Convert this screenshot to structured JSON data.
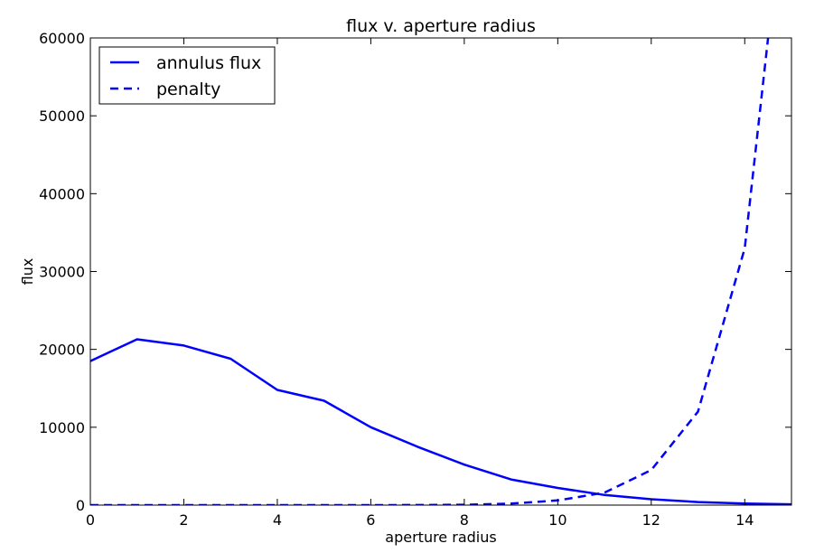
{
  "chart_data": {
    "type": "line",
    "title": "flux v. aperture radius",
    "xlabel": "aperture radius",
    "ylabel": "flux",
    "xlim": [
      0,
      15
    ],
    "ylim": [
      0,
      60000
    ],
    "xticks": [
      0,
      2,
      4,
      6,
      8,
      10,
      12,
      14
    ],
    "yticks": [
      0,
      10000,
      20000,
      30000,
      40000,
      50000,
      60000
    ],
    "grid": false,
    "legend": "top-left",
    "color": "#0000ff",
    "series": [
      {
        "name": "annulus flux",
        "style": "solid",
        "x": [
          0,
          1,
          2,
          3,
          4,
          5,
          6,
          7,
          8,
          9,
          10,
          11,
          12,
          13,
          14,
          15
        ],
        "y": [
          18500,
          21300,
          20500,
          18800,
          14800,
          13400,
          10000,
          7500,
          5200,
          3300,
          2200,
          1300,
          750,
          400,
          200,
          100
        ]
      },
      {
        "name": "penalty",
        "style": "dashed",
        "x": [
          0,
          1,
          2,
          3,
          4,
          5,
          6,
          7,
          8,
          9,
          10,
          11,
          12,
          13,
          14,
          14.5
        ],
        "y": [
          0,
          0,
          0,
          0,
          0,
          0,
          0,
          10,
          50,
          200,
          600,
          1600,
          4500,
          12000,
          33000,
          60000
        ]
      }
    ]
  }
}
